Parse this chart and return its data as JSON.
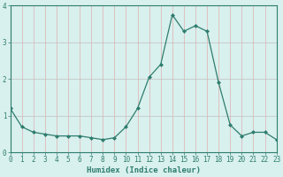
{
  "x": [
    0,
    1,
    2,
    3,
    4,
    5,
    6,
    7,
    8,
    9,
    10,
    11,
    12,
    13,
    14,
    15,
    16,
    17,
    18,
    19,
    20,
    21,
    22,
    23
  ],
  "y": [
    1.2,
    0.7,
    0.55,
    0.5,
    0.45,
    0.45,
    0.45,
    0.4,
    0.35,
    0.4,
    0.7,
    1.2,
    2.05,
    2.4,
    3.75,
    3.3,
    3.45,
    3.3,
    1.9,
    0.75,
    0.45,
    0.55,
    0.55,
    0.35
  ],
  "line_color": "#2e7d6e",
  "marker": "D",
  "marker_size": 2,
  "bg_color": "#d8f0ee",
  "grid_color_h": "#c0c0c0",
  "grid_color_v": "#e0b0b0",
  "axis_color": "#2e7d6e",
  "xlabel": "Humidex (Indice chaleur)",
  "xlim": [
    0,
    23
  ],
  "ylim": [
    0,
    4
  ],
  "yticks": [
    0,
    1,
    2,
    3,
    4
  ],
  "xticks": [
    0,
    1,
    2,
    3,
    4,
    5,
    6,
    7,
    8,
    9,
    10,
    11,
    12,
    13,
    14,
    15,
    16,
    17,
    18,
    19,
    20,
    21,
    22,
    23
  ],
  "xlabel_fontsize": 6.5,
  "tick_fontsize": 5.5,
  "linewidth": 0.9,
  "marker_edge_width": 0.5
}
